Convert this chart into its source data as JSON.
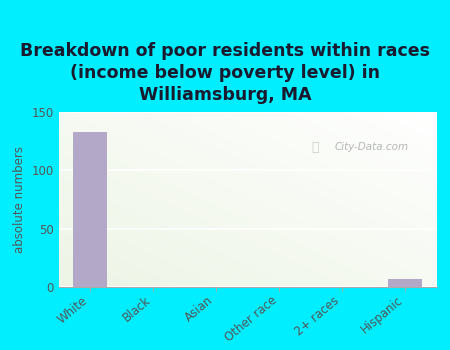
{
  "categories": [
    "White",
    "Black",
    "Asian",
    "Other race",
    "2+ races",
    "Hispanic"
  ],
  "values": [
    133,
    0,
    0,
    0,
    0,
    7
  ],
  "bar_color": "#b3a8c8",
  "title": "Breakdown of poor residents within races\n(income below poverty level) in\nWilliamsburg, MA",
  "ylabel": "absolute numbers",
  "ylim": [
    0,
    150
  ],
  "yticks": [
    0,
    50,
    100,
    150
  ],
  "bg_outer": "#00eeff",
  "bg_plot_color1": "#eef5e4",
  "bg_plot_color2": "#f8fbf2",
  "bg_plot_color3": "#ffffff",
  "grid_color": "#ffffff",
  "watermark": "City-Data.com",
  "title_fontsize": 12.5,
  "label_fontsize": 8.5,
  "tick_fontsize": 8.5,
  "title_color": "#1a1a2e"
}
